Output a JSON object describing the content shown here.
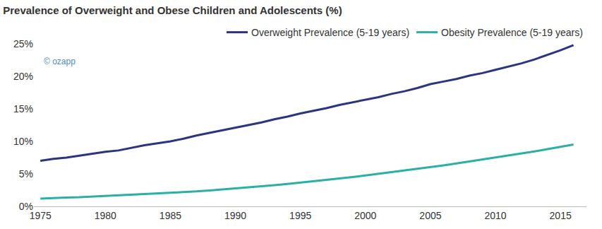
{
  "chart_data": {
    "type": "line",
    "title": "Prevalence of Overweight and Obese Children and Adolescents (%)",
    "annotations": [
      {
        "text": "© ozapp"
      }
    ],
    "x": [
      1975,
      1976,
      1977,
      1978,
      1979,
      1980,
      1981,
      1982,
      1983,
      1984,
      1985,
      1986,
      1987,
      1988,
      1989,
      1990,
      1991,
      1992,
      1993,
      1994,
      1995,
      1996,
      1997,
      1998,
      1999,
      2000,
      2001,
      2002,
      2003,
      2004,
      2005,
      2006,
      2007,
      2008,
      2009,
      2010,
      2011,
      2012,
      2013,
      2014,
      2015,
      2016
    ],
    "series": [
      {
        "name": "Overweight Prevalence (5-19 years)",
        "color": "#2b3580",
        "values": [
          7.0,
          7.3,
          7.5,
          7.8,
          8.1,
          8.4,
          8.6,
          9.0,
          9.4,
          9.7,
          10.0,
          10.4,
          10.9,
          11.3,
          11.7,
          12.1,
          12.5,
          12.9,
          13.4,
          13.8,
          14.3,
          14.7,
          15.1,
          15.6,
          16.0,
          16.4,
          16.8,
          17.3,
          17.7,
          18.2,
          18.8,
          19.2,
          19.6,
          20.1,
          20.5,
          21.0,
          21.5,
          22.0,
          22.6,
          23.3,
          24.0,
          24.8
        ]
      },
      {
        "name": "Obesity Prevalence (5-19 years)",
        "color": "#2ab0a5",
        "values": [
          1.2,
          1.3,
          1.35,
          1.4,
          1.5,
          1.6,
          1.7,
          1.75,
          1.85,
          1.95,
          2.1,
          2.2,
          2.3,
          2.45,
          2.6,
          2.8,
          2.95,
          3.1,
          3.25,
          3.45,
          3.65,
          3.85,
          4.05,
          4.3,
          4.5,
          4.75,
          5.0,
          5.25,
          5.5,
          5.75,
          6.0,
          6.3,
          6.6,
          6.9,
          7.2,
          7.5,
          7.8,
          8.1,
          8.45,
          8.8,
          9.15,
          9.5
        ]
      }
    ],
    "xlim": [
      1974.5,
      2017
    ],
    "xticks": [
      1975,
      1980,
      1985,
      1990,
      1995,
      2000,
      2005,
      2010,
      2015
    ],
    "ylim": [
      0,
      25
    ],
    "yticks": [
      {
        "value": 0,
        "label": "0%"
      },
      {
        "value": 5,
        "label": "5%"
      },
      {
        "value": 10,
        "label": "10%"
      },
      {
        "value": 15,
        "label": "15%"
      },
      {
        "value": 20,
        "label": "20%"
      },
      {
        "value": 25,
        "label": "25%"
      }
    ],
    "grid": false,
    "legend": "top right"
  }
}
